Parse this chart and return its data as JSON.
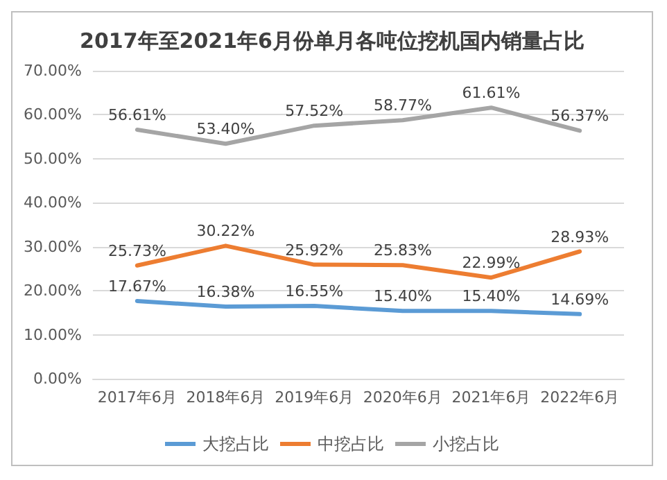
{
  "chart_data": {
    "type": "line",
    "title": "2017年至2021年6月份单月各吨位挖机国内销量占比",
    "categories": [
      "2017年6月",
      "2018年6月",
      "2019年6月",
      "2020年6月",
      "2021年6月",
      "2022年6月"
    ],
    "series": [
      {
        "name": "大挖占比",
        "color": "#5b9bd5",
        "values": [
          17.67,
          16.38,
          16.55,
          15.4,
          15.4,
          14.69
        ],
        "value_labels": [
          "17.67%",
          "16.38%",
          "16.55%",
          "15.40%",
          "15.40%",
          "14.69%"
        ]
      },
      {
        "name": "中挖占比",
        "color": "#ed7d31",
        "values": [
          25.73,
          30.22,
          25.92,
          25.83,
          22.99,
          28.93
        ],
        "value_labels": [
          "25.73%",
          "30.22%",
          "25.92%",
          "25.83%",
          "22.99%",
          "28.93%"
        ]
      },
      {
        "name": "小挖占比",
        "color": "#a5a5a5",
        "values": [
          56.61,
          53.4,
          57.52,
          58.77,
          61.61,
          56.37
        ],
        "value_labels": [
          "56.61%",
          "53.40%",
          "57.52%",
          "58.77%",
          "61.61%",
          "56.37%"
        ]
      }
    ],
    "ylim": [
      0,
      70
    ],
    "yticks": [
      {
        "value": 0,
        "label": "0.00%"
      },
      {
        "value": 10,
        "label": "10.00%"
      },
      {
        "value": 20,
        "label": "20.00%"
      },
      {
        "value": 30,
        "label": "30.00%"
      },
      {
        "value": 40,
        "label": "40.00%"
      },
      {
        "value": 50,
        "label": "50.00%"
      },
      {
        "value": 60,
        "label": "60.00%"
      },
      {
        "value": 70,
        "label": "70.00%"
      }
    ],
    "grid": "y",
    "legend": "bottom",
    "marker": "none",
    "line_style": "solid"
  }
}
